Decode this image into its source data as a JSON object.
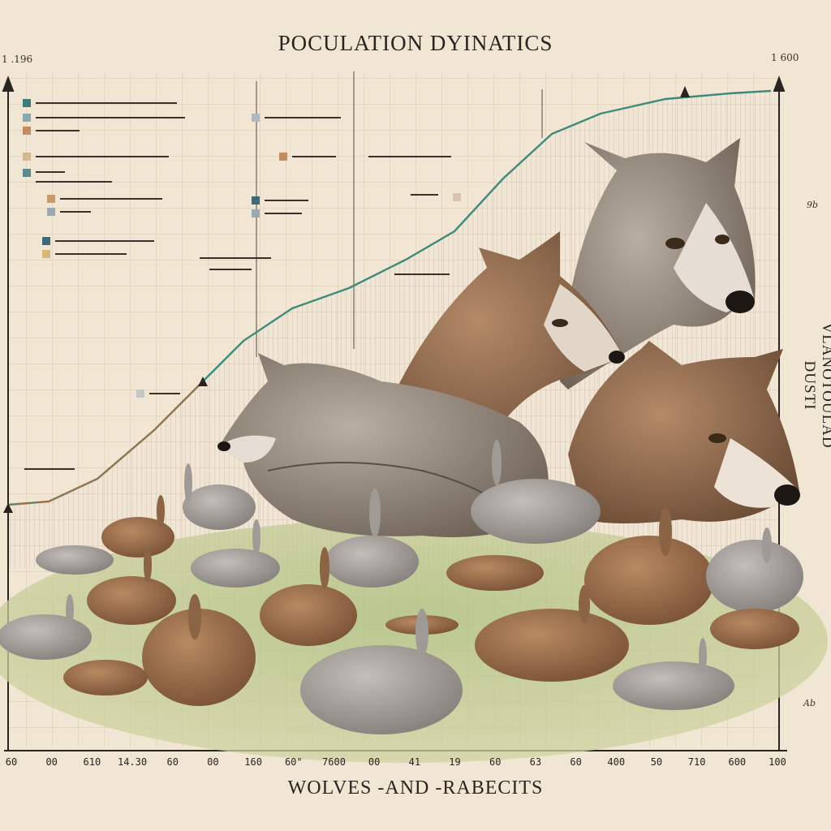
{
  "title": "POCULATION DYINATICS",
  "subtitle": "WOLVES -AND -RABECITS",
  "vertical_label": "VLANOTOULAD DUSTI",
  "corner_left": "1 .196",
  "corner_right": "1 600",
  "right_ticks": [
    "9b",
    "Ab"
  ],
  "x_ticks": [
    "60",
    "00",
    "610",
    "14.30",
    "60",
    "00",
    "160",
    "60\"",
    "7600",
    "00",
    "41",
    "19",
    "60",
    "63",
    "60",
    "400",
    "50",
    "710",
    "600",
    "100"
  ],
  "colors": {
    "paper": "#f1e6d4",
    "grid": "#d9c6ae",
    "curve": "#3f8a7a",
    "grass": "#b8c88a"
  }
}
